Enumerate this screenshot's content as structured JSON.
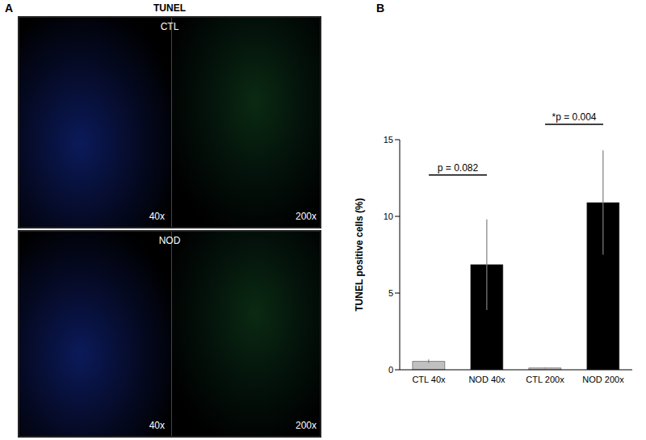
{
  "panel_a": {
    "label": "A",
    "title": "TUNEL",
    "groups": [
      "CTL",
      "NOD"
    ],
    "magnifications": [
      "40x",
      "200x"
    ]
  },
  "chart_data": {
    "type": "bar",
    "panel_label": "B",
    "y_label": "TUNEL positive cells (%)",
    "categories": [
      "CTL 40x",
      "NOD 40x",
      "CTL 200x",
      "NOD 200x"
    ],
    "values": [
      0.55,
      6.85,
      0.12,
      10.9
    ],
    "errors": [
      0.12,
      2.95,
      0.03,
      3.4
    ],
    "colors": [
      "#c0c0c0",
      "#000000",
      "#c0c0c0",
      "#000000"
    ],
    "ylim": [
      0,
      15
    ],
    "yticks": [
      0,
      5,
      10,
      15
    ],
    "grid": false,
    "annotations": [
      {
        "text": "p = 0.082",
        "from": "CTL 40x",
        "to": "NOD 40x",
        "y": 12.7
      },
      {
        "text": "*p = 0.004",
        "from": "CTL 200x",
        "to": "NOD 200x",
        "y": 16
      }
    ]
  }
}
